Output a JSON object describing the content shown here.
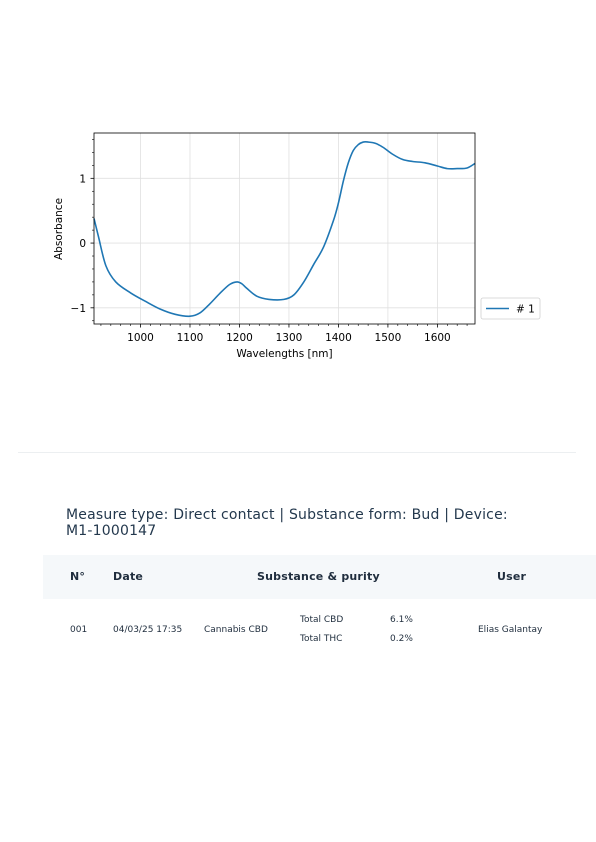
{
  "chart_data": {
    "type": "line",
    "xlabel": "Wavelengths [nm]",
    "ylabel": "Absorbance",
    "xlim": [
      906,
      1676
    ],
    "ylim": [
      -1.25,
      1.7
    ],
    "xticks": [
      1000,
      1100,
      1200,
      1300,
      1400,
      1500,
      1600
    ],
    "yticks": [
      1,
      0,
      -1
    ],
    "ytick_labels": [
      "1",
      "0",
      "−1"
    ],
    "grid": true,
    "legend_position": "outside-right",
    "series": [
      {
        "name": "# 1",
        "color": "#1f77b4",
        "x": [
          906,
          915,
          930,
          950,
          980,
          1010,
          1040,
          1070,
          1100,
          1120,
          1140,
          1160,
          1180,
          1195,
          1205,
          1215,
          1235,
          1260,
          1290,
          1310,
          1330,
          1350,
          1370,
          1390,
          1400,
          1410,
          1420,
          1430,
          1440,
          1450,
          1460,
          1475,
          1490,
          1510,
          1530,
          1550,
          1575,
          1600,
          1620,
          1640,
          1660,
          1676
        ],
        "y": [
          0.38,
          0.1,
          -0.35,
          -0.6,
          -0.77,
          -0.9,
          -1.02,
          -1.1,
          -1.13,
          -1.08,
          -0.94,
          -0.78,
          -0.64,
          -0.6,
          -0.63,
          -0.7,
          -0.82,
          -0.87,
          -0.87,
          -0.8,
          -0.6,
          -0.33,
          -0.06,
          0.35,
          0.62,
          0.96,
          1.24,
          1.43,
          1.52,
          1.56,
          1.56,
          1.54,
          1.48,
          1.37,
          1.29,
          1.26,
          1.24,
          1.19,
          1.15,
          1.15,
          1.16,
          1.23
        ]
      }
    ]
  },
  "measure_line": "Measure type: Direct contact | Substance form: Bud | Device: M1-1000147",
  "table": {
    "headers": {
      "number": "N°",
      "date": "Date",
      "substance": "Substance & purity",
      "user": "User"
    },
    "rows": [
      {
        "number": "001",
        "date": "04/03/25 17:35",
        "substance": "Cannabis CBD",
        "purity": [
          {
            "label": "Total CBD",
            "value": "6.1%"
          },
          {
            "label": "Total THC",
            "value": "0.2%"
          }
        ],
        "user": "Elias Galantay"
      }
    ]
  }
}
